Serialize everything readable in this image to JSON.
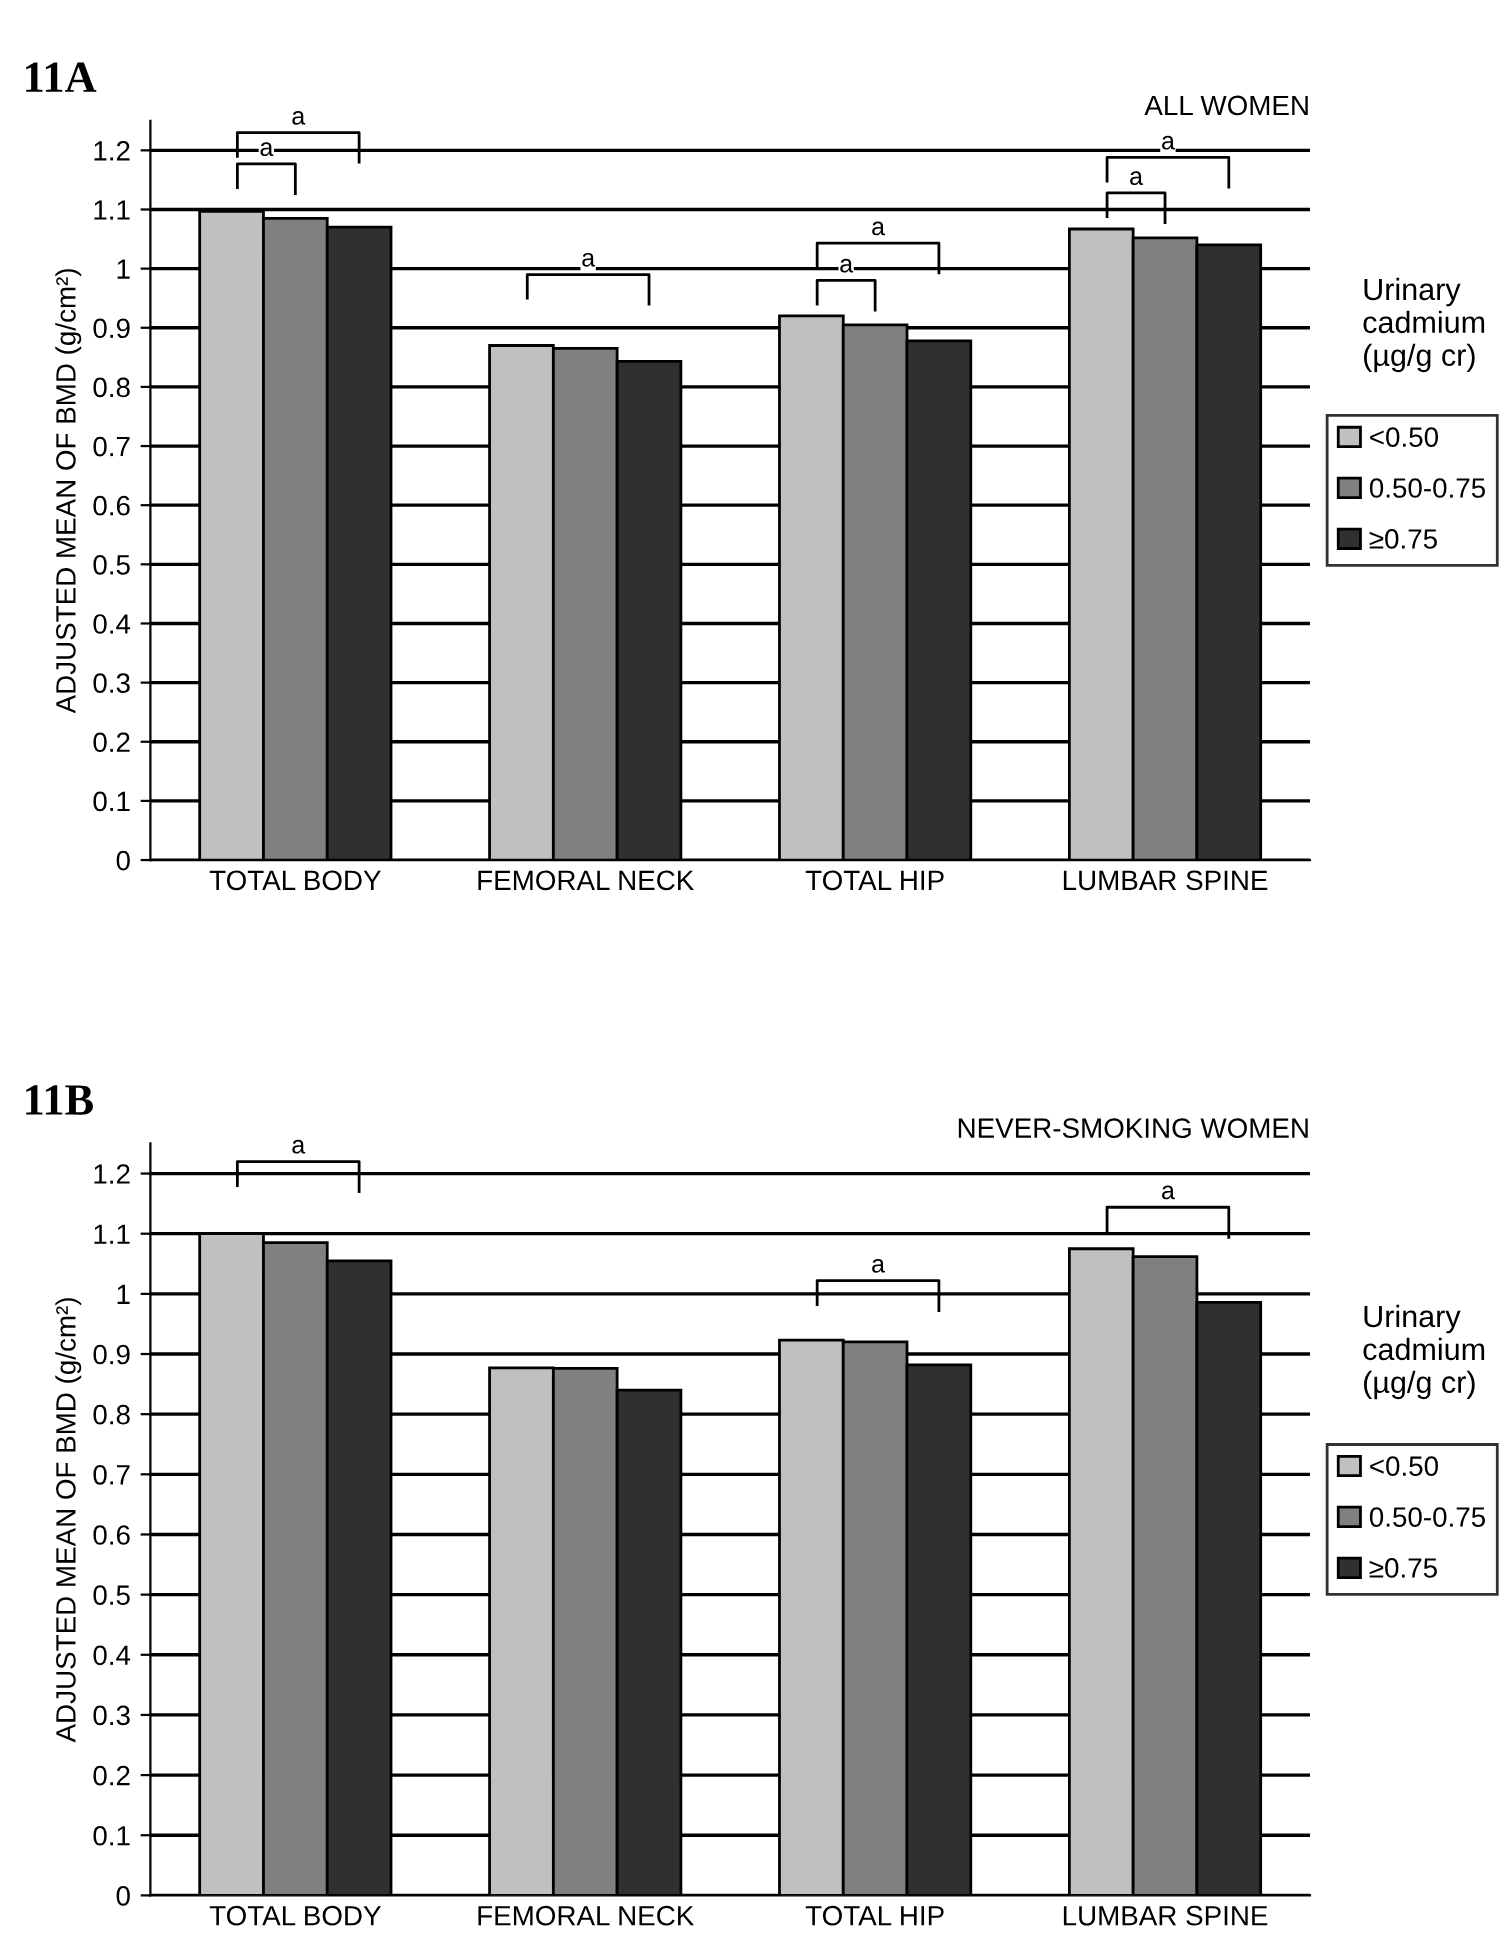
{
  "chart_data": [
    {
      "type": "bar",
      "title": "11A",
      "subtitle": "ALL WOMEN",
      "ylabel": "ADJUSTED MEAN OF BMD (g/cm²)",
      "legend_title": "Urinary\ncadmium\n(µg/g cr)",
      "categories": [
        "TOTAL BODY",
        "FEMORAL NECK",
        "TOTAL HIP",
        "LUMBAR SPINE"
      ],
      "series": [
        {
          "name": "<0.50",
          "color": "#c0c0c0",
          "values": [
            1.097,
            0.87,
            0.92,
            1.067
          ]
        },
        {
          "name": "0.50-0.75",
          "color": "#808080",
          "values": [
            1.085,
            0.865,
            0.905,
            1.052
          ]
        },
        {
          "name": "≥0.75",
          "color": "#303030",
          "values": [
            1.07,
            0.843,
            0.878,
            1.04
          ]
        }
      ],
      "ylim": [
        0,
        1.25
      ],
      "yticks": [
        0,
        0.1,
        0.2,
        0.3,
        0.4,
        0.5,
        0.6,
        0.7,
        0.8,
        0.9,
        1,
        1.1,
        1.2
      ],
      "grid": "y",
      "legend": "right",
      "annotations": [
        "a",
        "a",
        "a",
        "a",
        "a",
        "a",
        "a"
      ]
    },
    {
      "type": "bar",
      "title": "11B",
      "subtitle": "NEVER-SMOKING WOMEN",
      "ylabel": "ADJUSTED MEAN OF BMD (g/cm²)",
      "legend_title": "Urinary\ncadmium\n(µg/g cr)",
      "categories": [
        "TOTAL BODY",
        "FEMORAL NECK",
        "TOTAL HIP",
        "LUMBAR SPINE"
      ],
      "series": [
        {
          "name": "<0.50",
          "color": "#c0c0c0",
          "values": [
            1.1,
            0.877,
            0.923,
            1.075
          ]
        },
        {
          "name": "0.50-0.75",
          "color": "#808080",
          "values": [
            1.085,
            0.876,
            0.92,
            1.062
          ]
        },
        {
          "name": "≥0.75",
          "color": "#303030",
          "values": [
            1.055,
            0.84,
            0.882,
            0.986
          ]
        }
      ],
      "ylim": [
        0,
        1.25
      ],
      "yticks": [
        0,
        0.1,
        0.2,
        0.3,
        0.4,
        0.5,
        0.6,
        0.7,
        0.8,
        0.9,
        1,
        1.1,
        1.2
      ],
      "grid": "y",
      "legend": "right",
      "annotations": [
        "a",
        "a",
        "a"
      ]
    }
  ]
}
